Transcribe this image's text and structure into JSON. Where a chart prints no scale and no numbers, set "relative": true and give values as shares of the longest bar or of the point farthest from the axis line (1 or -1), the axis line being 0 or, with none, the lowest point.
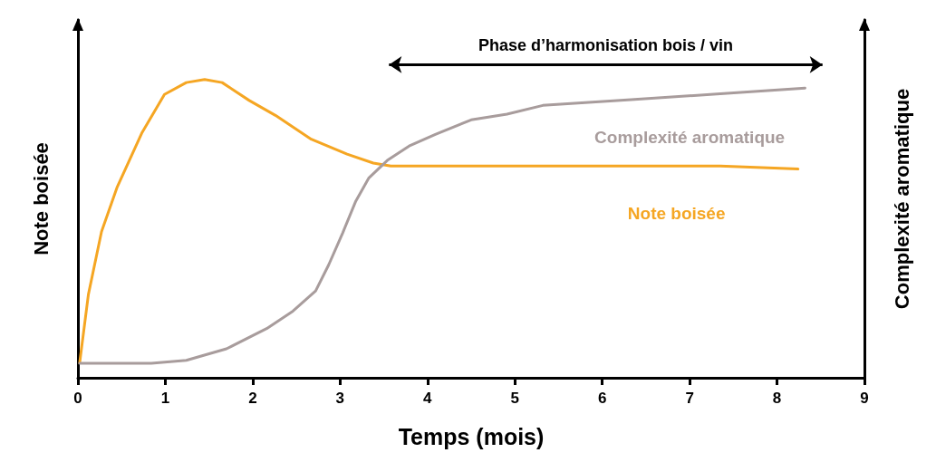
{
  "chart_data": {
    "type": "line",
    "relative": true,
    "xlabel": "Temps (mois)",
    "ylabel": "Note boisée",
    "y2label": "Complexité aromatique",
    "xlim": [
      0,
      9
    ],
    "xticks": [
      0,
      1,
      2,
      3,
      4,
      5,
      6,
      7,
      8,
      9
    ],
    "grid": false,
    "legend": false,
    "marker": "none",
    "line_style": "solid",
    "annotations": [
      "Phase d’harmonisation bois / vin"
    ],
    "series": [
      {
        "name": "Note boisée",
        "color": "#f5a623",
        "axis": "y",
        "x": [
          0.02,
          0.12,
          0.27,
          0.45,
          0.73,
          0.99,
          1.24,
          1.45,
          1.65,
          1.96,
          2.26,
          2.67,
          3.08,
          3.38,
          3.58,
          4.3,
          5.32,
          6.33,
          7.35,
          8.24
        ],
        "values": [
          0.05,
          0.28,
          0.49,
          0.64,
          0.82,
          0.95,
          0.99,
          1.0,
          0.99,
          0.93,
          0.88,
          0.8,
          0.75,
          0.72,
          0.71,
          0.71,
          0.71,
          0.71,
          0.71,
          0.7
        ]
      },
      {
        "name": "Complexité aromatique",
        "color": "#a89c9c",
        "axis": "y2",
        "x": [
          0.02,
          0.84,
          1.24,
          1.7,
          2.16,
          2.46,
          2.72,
          2.87,
          3.03,
          3.18,
          3.33,
          3.54,
          3.79,
          4.09,
          4.5,
          4.91,
          5.32,
          6.33,
          7.35,
          8.32
        ],
        "values": [
          0.05,
          0.05,
          0.06,
          0.1,
          0.17,
          0.23,
          0.3,
          0.39,
          0.5,
          0.61,
          0.69,
          0.75,
          0.8,
          0.84,
          0.89,
          0.91,
          0.94,
          0.96,
          0.98,
          1.0
        ]
      }
    ]
  }
}
